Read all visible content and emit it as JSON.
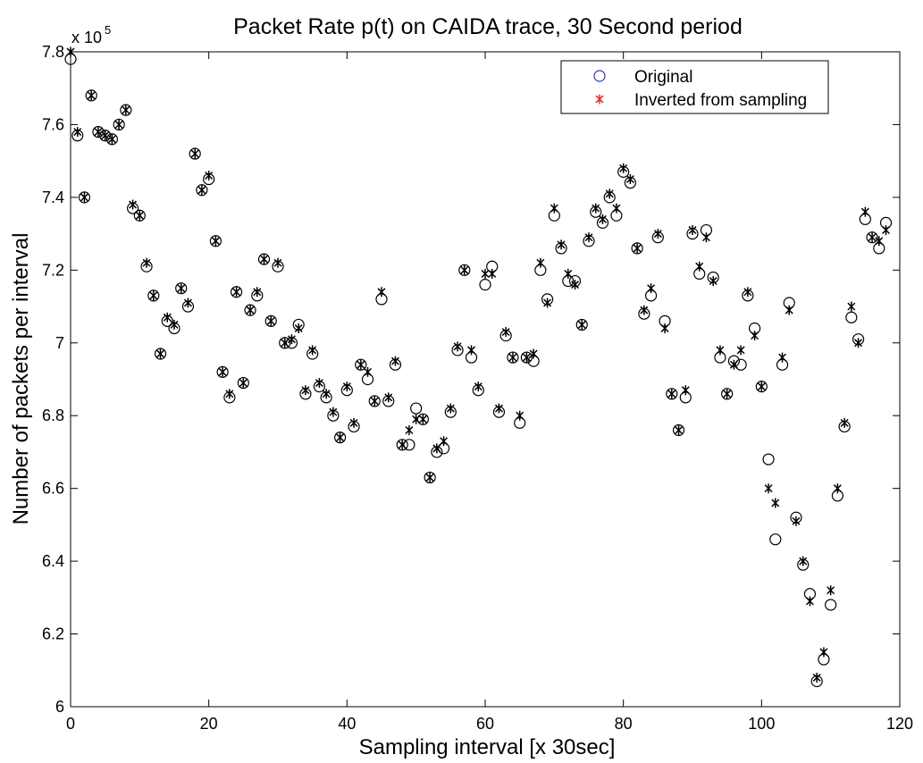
{
  "chart_data": {
    "type": "scatter",
    "title": "Packet Rate p(t) on CAIDA trace, 30 Second period",
    "xlabel": "Sampling interval [x 30sec]",
    "ylabel": "Number of packets per interval",
    "y_multiplier_base": "x 10",
    "y_multiplier_exp": "5",
    "xlim": [
      0,
      120
    ],
    "ylim": [
      6,
      7.8
    ],
    "x_ticks": [
      0,
      20,
      40,
      60,
      80,
      100,
      120
    ],
    "y_ticks": [
      6,
      6.2,
      6.4,
      6.6,
      6.8,
      7,
      7.2,
      7.4,
      7.6,
      7.8
    ],
    "x_tick_labels": [
      "0",
      "20",
      "40",
      "60",
      "80",
      "100",
      "120"
    ],
    "y_tick_labels": [
      "6",
      "6.2",
      "6.4",
      "6.6",
      "6.8",
      "7",
      "7.2",
      "7.4",
      "7.6",
      "7.8"
    ],
    "grid": false,
    "legend_position": "top-right",
    "series": [
      {
        "name": "Original",
        "marker": "circle",
        "color": "#3333cc",
        "x": [
          0,
          1,
          2,
          3,
          4,
          5,
          6,
          7,
          8,
          9,
          10,
          11,
          12,
          13,
          14,
          15,
          16,
          17,
          18,
          19,
          20,
          21,
          22,
          23,
          24,
          25,
          26,
          27,
          28,
          29,
          30,
          31,
          32,
          33,
          34,
          35,
          36,
          37,
          38,
          39,
          40,
          41,
          42,
          43,
          44,
          45,
          46,
          47,
          48,
          49,
          50,
          51,
          52,
          53,
          54,
          55,
          56,
          57,
          58,
          59,
          60,
          61,
          62,
          63,
          64,
          65,
          66,
          67,
          68,
          69,
          70,
          71,
          72,
          73,
          74,
          75,
          76,
          77,
          78,
          79,
          80,
          81,
          82,
          83,
          84,
          85,
          86,
          87,
          88,
          89,
          90,
          91,
          92,
          93,
          94,
          95,
          96,
          97,
          98,
          99,
          100,
          101,
          102,
          103,
          104,
          105,
          106,
          107,
          108,
          109,
          110,
          111,
          112,
          113,
          114,
          115,
          116,
          117,
          118
        ],
        "y": [
          7.78,
          7.57,
          7.4,
          7.68,
          7.58,
          7.57,
          7.56,
          7.6,
          7.64,
          7.37,
          7.35,
          7.21,
          7.13,
          6.97,
          7.06,
          7.04,
          7.15,
          7.1,
          7.52,
          7.42,
          7.45,
          7.28,
          6.92,
          6.85,
          7.14,
          6.89,
          7.09,
          7.13,
          7.23,
          7.06,
          7.21,
          7.0,
          7.0,
          7.05,
          6.86,
          6.97,
          6.88,
          6.85,
          6.8,
          6.74,
          6.87,
          6.77,
          6.94,
          6.9,
          6.84,
          7.12,
          6.84,
          6.94,
          6.72,
          6.72,
          6.82,
          6.79,
          6.63,
          6.7,
          6.71,
          6.81,
          6.98,
          7.2,
          6.96,
          6.87,
          7.16,
          7.21,
          6.81,
          7.02,
          6.96,
          6.78,
          6.96,
          6.95,
          7.2,
          7.12,
          7.35,
          7.26,
          7.17,
          7.17,
          7.05,
          7.28,
          7.36,
          7.33,
          7.4,
          7.35,
          7.47,
          7.44,
          7.26,
          7.08,
          7.13,
          7.29,
          7.06,
          6.86,
          6.76,
          6.85,
          7.3,
          7.19,
          7.31,
          7.18,
          6.96,
          6.86,
          6.95,
          6.94,
          7.13,
          7.04,
          6.88,
          6.68,
          6.46,
          6.94,
          7.11,
          6.52,
          6.39,
          6.31,
          6.07,
          6.13,
          6.28,
          6.58,
          6.77,
          7.07,
          7.01,
          7.34,
          7.29,
          7.26,
          7.33
        ]
      },
      {
        "name": "Inverted from sampling",
        "marker": "asterisk",
        "color": "#ff2222",
        "x": [
          0,
          1,
          2,
          3,
          4,
          5,
          6,
          7,
          8,
          9,
          10,
          11,
          12,
          13,
          14,
          15,
          16,
          17,
          18,
          19,
          20,
          21,
          22,
          23,
          24,
          25,
          26,
          27,
          28,
          29,
          30,
          31,
          32,
          33,
          34,
          35,
          36,
          37,
          38,
          39,
          40,
          41,
          42,
          43,
          44,
          45,
          46,
          47,
          48,
          49,
          50,
          51,
          52,
          53,
          54,
          55,
          56,
          57,
          58,
          59,
          60,
          61,
          62,
          63,
          64,
          65,
          66,
          67,
          68,
          69,
          70,
          71,
          72,
          73,
          74,
          75,
          76,
          77,
          78,
          79,
          80,
          81,
          82,
          83,
          84,
          85,
          86,
          87,
          88,
          89,
          90,
          91,
          92,
          93,
          94,
          95,
          96,
          97,
          98,
          99,
          100,
          101,
          102,
          103,
          104,
          105,
          106,
          107,
          108,
          109,
          110,
          111,
          112,
          113,
          114,
          115,
          116,
          117,
          118
        ],
        "y": [
          7.8,
          7.58,
          7.4,
          7.68,
          7.58,
          7.57,
          7.56,
          7.6,
          7.64,
          7.38,
          7.35,
          7.22,
          7.13,
          6.97,
          7.07,
          7.05,
          7.15,
          7.11,
          7.52,
          7.42,
          7.46,
          7.28,
          6.92,
          6.86,
          7.14,
          6.89,
          7.09,
          7.14,
          7.23,
          7.06,
          7.22,
          7.0,
          7.01,
          7.04,
          6.87,
          6.98,
          6.89,
          6.86,
          6.81,
          6.74,
          6.88,
          6.78,
          6.94,
          6.92,
          6.84,
          7.14,
          6.85,
          6.95,
          6.72,
          6.76,
          6.79,
          6.79,
          6.63,
          6.71,
          6.73,
          6.82,
          6.99,
          7.2,
          6.98,
          6.88,
          7.19,
          7.19,
          6.82,
          7.03,
          6.96,
          6.8,
          6.96,
          6.97,
          7.22,
          7.11,
          7.37,
          7.27,
          7.19,
          7.16,
          7.05,
          7.29,
          7.37,
          7.34,
          7.41,
          7.37,
          7.48,
          7.45,
          7.26,
          7.09,
          7.15,
          7.3,
          7.04,
          6.86,
          6.76,
          6.87,
          7.31,
          7.21,
          7.29,
          7.17,
          6.98,
          6.86,
          6.94,
          6.98,
          7.14,
          7.02,
          6.88,
          6.6,
          6.56,
          6.96,
          7.09,
          6.51,
          6.4,
          6.29,
          6.08,
          6.15,
          6.32,
          6.6,
          6.78,
          7.1,
          7.0,
          7.36,
          7.29,
          7.28,
          7.31
        ]
      }
    ]
  }
}
